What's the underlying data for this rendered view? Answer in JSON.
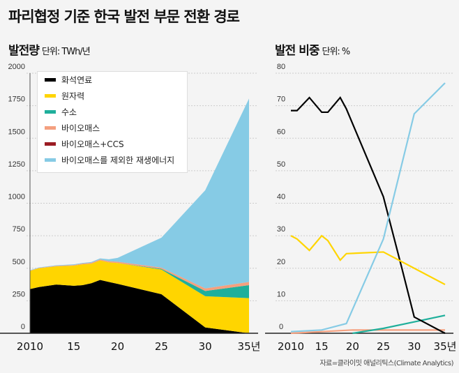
{
  "title": "파리협정 기준 한국 발전 부문 전환 경로",
  "left": {
    "title": "발전량",
    "unit": "단위: TWh/년"
  },
  "right": {
    "title": "발전 비중",
    "unit": "단위: %"
  },
  "source": "자료=클라이밋 애널리틱스(Climate Analytics)",
  "legend": [
    {
      "name": "화석연료",
      "color": "#000000"
    },
    {
      "name": "원자력",
      "color": "#ffd500"
    },
    {
      "name": "수소",
      "color": "#1faf9b"
    },
    {
      "name": "바이오매스",
      "color": "#f4a07f"
    },
    {
      "name": "바이오매스+CCS",
      "color": "#9b1c23"
    },
    {
      "name": "바이오매스를 제외한 재생에너지",
      "color": "#86cbe5"
    }
  ],
  "chart_data": [
    {
      "type": "area",
      "stacked": true,
      "ylim": [
        0,
        2000
      ],
      "yticks": [
        "0",
        "250",
        "500",
        "750",
        "1000",
        "1250",
        "1500",
        "1750",
        "2000"
      ],
      "xticks": [
        "2010",
        "15",
        "20",
        "25",
        "30",
        "35년"
      ],
      "grid": true,
      "legend": "top-left",
      "x": [
        2010,
        2011,
        2013,
        2015,
        2016,
        2017,
        2018,
        2019,
        2020,
        2025,
        2030,
        2035
      ],
      "series": [
        {
          "name": "화석연료",
          "values": [
            340,
            355,
            375,
            365,
            370,
            385,
            410,
            395,
            380,
            300,
            45,
            0
          ]
        },
        {
          "name": "원자력",
          "values": [
            140,
            145,
            140,
            155,
            160,
            150,
            150,
            150,
            160,
            190,
            240,
            270
          ]
        },
        {
          "name": "수소",
          "values": [
            0,
            0,
            0,
            0,
            0,
            0,
            0,
            0,
            0,
            5,
            40,
            100
          ]
        },
        {
          "name": "바이오매스",
          "values": [
            2,
            3,
            4,
            5,
            6,
            7,
            8,
            9,
            10,
            10,
            20,
            25
          ]
        },
        {
          "name": "바이오매스+CCS",
          "values": [
            0,
            0,
            0,
            0,
            0,
            0,
            0,
            0,
            0,
            0,
            0,
            0
          ]
        },
        {
          "name": "바이오매스를 제외한 재생에너지",
          "values": [
            3,
            3,
            4,
            5,
            5,
            6,
            8,
            15,
            30,
            230,
            755,
            1410
          ]
        }
      ]
    },
    {
      "type": "line",
      "ylim": [
        0,
        80
      ],
      "yticks": [
        "0",
        "10",
        "20",
        "30",
        "40",
        "50",
        "60",
        "70",
        "80"
      ],
      "xticks": [
        "2010",
        "15",
        "20",
        "25",
        "30",
        "35년"
      ],
      "grid": true,
      "series": [
        {
          "name": "화석연료",
          "x": [
            2010,
            2011,
            2013,
            2015,
            2016,
            2018,
            2019,
            2025,
            2028,
            2030,
            2035
          ],
          "values": [
            68.5,
            68.5,
            72.5,
            68,
            68,
            72.5,
            69,
            42,
            20,
            5,
            0
          ]
        },
        {
          "name": "원자력",
          "x": [
            2010,
            2011,
            2013,
            2015,
            2016,
            2018,
            2019,
            2025,
            2030,
            2035
          ],
          "values": [
            30,
            29,
            25.5,
            30,
            28.5,
            22.5,
            24.5,
            25,
            20,
            15
          ]
        },
        {
          "name": "수소",
          "x": [
            2020,
            2025,
            2030,
            2035
          ],
          "values": [
            0,
            1.5,
            3.5,
            5.5
          ]
        },
        {
          "name": "바이오매스",
          "x": [
            2010,
            2015,
            2020,
            2035
          ],
          "values": [
            0,
            0.5,
            1,
            1
          ]
        },
        {
          "name": "바이오매스를 제외한 재생에너지",
          "x": [
            2010,
            2015,
            2019,
            2025,
            2030,
            2035
          ],
          "values": [
            0.5,
            1,
            3,
            29,
            67.5,
            77
          ]
        }
      ]
    }
  ]
}
